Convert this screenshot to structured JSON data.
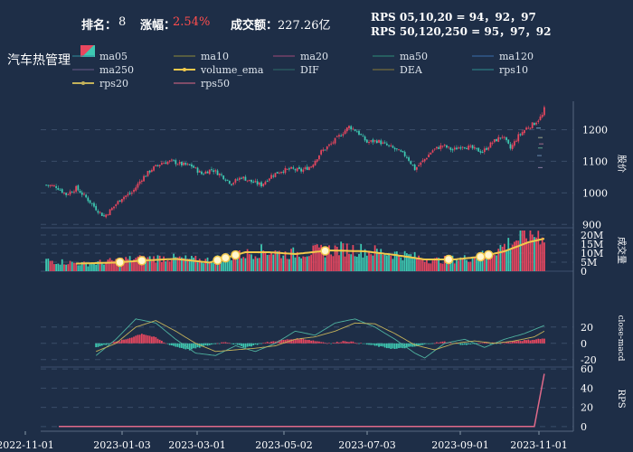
{
  "header": {
    "rank_label": "排名：",
    "rank_value": "8",
    "change_label": "涨幅：",
    "change_value": "2.54%",
    "amount_label": "成交额：",
    "amount_value": "227.26亿",
    "rps_line1": "RPS 05,10,20 = 94，92，97",
    "rps_line2": "RPS 50,120,250 = 95，97，92",
    "title": "汽车热管理"
  },
  "colors": {
    "background": "#1e2e47",
    "up": "#e8475f",
    "down": "#3ec9b2",
    "volume_ema": "#f2c94c",
    "dif": "#4fb3a0",
    "dea": "#c4b25a",
    "rps20": "#e08ab8",
    "rps50": "#e06a8a",
    "change_value": "#ff4d4d"
  },
  "legend": [
    {
      "name": "ma05",
      "color": "#2f8f9d",
      "style": "line"
    },
    {
      "name": "ma10",
      "color": "#8f8a3a",
      "style": "line"
    },
    {
      "name": "ma20",
      "color": "#a04a7a",
      "style": "line"
    },
    {
      "name": "ma50",
      "color": "#2f8f7a",
      "style": "line"
    },
    {
      "name": "ma120",
      "color": "#3a6fae",
      "style": "line"
    },
    {
      "name": "ma250",
      "color": "#6a5a8a",
      "style": "line"
    },
    {
      "name": "volume_ema",
      "color": "#f2c94c",
      "style": "line-dot"
    },
    {
      "name": "DIF",
      "color": "#2f6f6a",
      "style": "line"
    },
    {
      "name": "DEA",
      "color": "#8a7a3a",
      "style": "line"
    },
    {
      "name": "rps10",
      "color": "#2f8f8f",
      "style": "line"
    },
    {
      "name": "rps20",
      "color": "#c4b25a",
      "style": "line-dot"
    },
    {
      "name": "rps50",
      "color": "#e06a8a",
      "style": "line"
    }
  ],
  "chart_data": {
    "type": "candlestick",
    "x_ticks": [
      "2022-11-01",
      "2023-01-03",
      "2023-03-01",
      "2023-05-02",
      "2023-07-03",
      "2023-09-01",
      "2023-11-01"
    ],
    "price": {
      "ylabel": "股价",
      "ticks": [
        900,
        1000,
        1100,
        1200
      ],
      "ylim": [
        895,
        1290
      ],
      "close_path": [
        [
          0,
          1025
        ],
        [
          5,
          1020
        ],
        [
          10,
          995
        ],
        [
          15,
          1015
        ],
        [
          20,
          985
        ],
        [
          25,
          950
        ],
        [
          29,
          925
        ],
        [
          33,
          950
        ],
        [
          38,
          985
        ],
        [
          43,
          1000
        ],
        [
          48,
          1045
        ],
        [
          53,
          1075
        ],
        [
          58,
          1095
        ],
        [
          63,
          1100
        ],
        [
          68,
          1090
        ],
        [
          73,
          1085
        ],
        [
          78,
          1060
        ],
        [
          83,
          1075
        ],
        [
          88,
          1055
        ],
        [
          93,
          1030
        ],
        [
          98,
          1050
        ],
        [
          103,
          1035
        ],
        [
          108,
          1025
        ],
        [
          113,
          1055
        ],
        [
          118,
          1070
        ],
        [
          123,
          1075
        ],
        [
          128,
          1070
        ],
        [
          133,
          1085
        ],
        [
          138,
          1130
        ],
        [
          143,
          1155
        ],
        [
          148,
          1185
        ],
        [
          152,
          1210
        ],
        [
          156,
          1195
        ],
        [
          161,
          1160
        ],
        [
          166,
          1165
        ],
        [
          171,
          1150
        ],
        [
          176,
          1135
        ],
        [
          181,
          1115
        ],
        [
          185,
          1075
        ],
        [
          189,
          1100
        ],
        [
          194,
          1135
        ],
        [
          199,
          1150
        ],
        [
          204,
          1135
        ],
        [
          209,
          1150
        ],
        [
          214,
          1140
        ],
        [
          219,
          1130
        ],
        [
          224,
          1160
        ],
        [
          229,
          1180
        ],
        [
          233,
          1140
        ],
        [
          237,
          1180
        ],
        [
          241,
          1205
        ],
        [
          245,
          1220
        ],
        [
          249,
          1245
        ],
        [
          250,
          1265
        ]
      ]
    },
    "volume": {
      "ylabel": "成交量",
      "ticks": [
        "0",
        "5M",
        "10M",
        "15M",
        "20M"
      ],
      "tick_values": [
        0,
        5,
        10,
        15,
        20
      ],
      "ylim": [
        0,
        23
      ],
      "base_path": [
        [
          0,
          6
        ],
        [
          20,
          4
        ],
        [
          40,
          6.5
        ],
        [
          60,
          7.5
        ],
        [
          80,
          6
        ],
        [
          95,
          8.5
        ],
        [
          110,
          11.5
        ],
        [
          120,
          9.5
        ],
        [
          135,
          11
        ],
        [
          150,
          12.5
        ],
        [
          165,
          11
        ],
        [
          180,
          9
        ],
        [
          195,
          6
        ],
        [
          210,
          7
        ],
        [
          220,
          9
        ],
        [
          230,
          14
        ],
        [
          240,
          20
        ],
        [
          250,
          21
        ]
      ],
      "ema_path": [
        [
          15,
          4.2
        ],
        [
          35,
          4.8
        ],
        [
          50,
          6
        ],
        [
          65,
          6.8
        ],
        [
          82,
          4.8
        ],
        [
          92,
          8
        ],
        [
          100,
          10.5
        ],
        [
          112,
          10.5
        ],
        [
          125,
          9.5
        ],
        [
          142,
          11.5
        ],
        [
          160,
          11
        ],
        [
          175,
          9
        ],
        [
          190,
          6.5
        ],
        [
          205,
          6.5
        ],
        [
          218,
          8
        ],
        [
          230,
          11
        ],
        [
          242,
          16
        ],
        [
          250,
          18
        ]
      ],
      "markers": [
        37,
        48,
        86,
        90,
        95,
        140,
        202,
        218,
        222
      ]
    },
    "macd": {
      "ylabel": "close-macd",
      "ticks": [
        -20,
        0,
        20
      ],
      "ylim": [
        -28,
        42
      ],
      "hist_path": [
        [
          25,
          -5
        ],
        [
          32,
          0
        ],
        [
          40,
          5
        ],
        [
          48,
          12
        ],
        [
          55,
          7
        ],
        [
          60,
          0
        ],
        [
          65,
          -4
        ],
        [
          72,
          -8
        ],
        [
          80,
          -3
        ],
        [
          90,
          2
        ],
        [
          100,
          -5
        ],
        [
          108,
          0
        ],
        [
          118,
          4
        ],
        [
          128,
          6
        ],
        [
          135,
          3
        ],
        [
          143,
          0
        ],
        [
          150,
          3
        ],
        [
          158,
          0
        ],
        [
          165,
          -3
        ],
        [
          175,
          -7
        ],
        [
          185,
          -4
        ],
        [
          193,
          0
        ],
        [
          200,
          2
        ],
        [
          210,
          -2
        ],
        [
          220,
          1
        ],
        [
          228,
          0
        ],
        [
          235,
          3
        ],
        [
          242,
          4
        ],
        [
          250,
          6
        ]
      ],
      "dif_path": [
        [
          25,
          -15
        ],
        [
          35,
          5
        ],
        [
          45,
          30
        ],
        [
          55,
          25
        ],
        [
          65,
          5
        ],
        [
          75,
          -12
        ],
        [
          85,
          -15
        ],
        [
          95,
          -3
        ],
        [
          105,
          -10
        ],
        [
          115,
          0
        ],
        [
          125,
          15
        ],
        [
          135,
          10
        ],
        [
          145,
          25
        ],
        [
          155,
          30
        ],
        [
          165,
          20
        ],
        [
          175,
          5
        ],
        [
          185,
          -12
        ],
        [
          190,
          -18
        ],
        [
          200,
          0
        ],
        [
          210,
          5
        ],
        [
          220,
          -5
        ],
        [
          230,
          5
        ],
        [
          240,
          12
        ],
        [
          250,
          22
        ]
      ],
      "dea_path": [
        [
          25,
          -10
        ],
        [
          35,
          0
        ],
        [
          45,
          20
        ],
        [
          55,
          28
        ],
        [
          65,
          15
        ],
        [
          75,
          0
        ],
        [
          85,
          -10
        ],
        [
          95,
          -8
        ],
        [
          105,
          -6
        ],
        [
          115,
          -3
        ],
        [
          125,
          5
        ],
        [
          135,
          8
        ],
        [
          145,
          15
        ],
        [
          155,
          25
        ],
        [
          165,
          24
        ],
        [
          175,
          12
        ],
        [
          185,
          -2
        ],
        [
          195,
          -8
        ],
        [
          205,
          0
        ],
        [
          215,
          3
        ],
        [
          225,
          0
        ],
        [
          235,
          3
        ],
        [
          245,
          8
        ],
        [
          250,
          15
        ]
      ]
    },
    "rps": {
      "ylabel": "RPS",
      "ticks": [
        0,
        20,
        40,
        60
      ],
      "ylim": [
        -3,
        63
      ],
      "path": [
        [
          0,
          0
        ],
        [
          238,
          0
        ],
        [
          245,
          0
        ],
        [
          250,
          55
        ]
      ]
    }
  }
}
